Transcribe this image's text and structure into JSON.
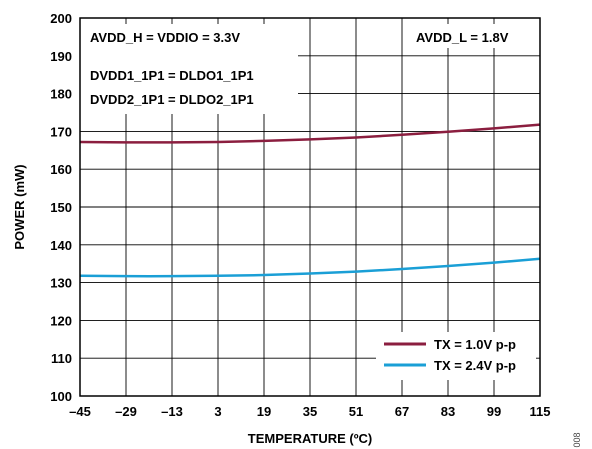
{
  "chart_data": {
    "type": "line",
    "xlabel": "TEMPERATURE (ºC)",
    "ylabel": "POWER (mW)",
    "xlim": [
      -45,
      115
    ],
    "ylim": [
      100,
      200
    ],
    "x_ticks": [
      "–45",
      "–29",
      "–13",
      "3",
      "19",
      "35",
      "51",
      "67",
      "83",
      "99",
      "115"
    ],
    "y_ticks": [
      "100",
      "110",
      "120",
      "130",
      "140",
      "150",
      "160",
      "170",
      "180",
      "190",
      "200"
    ],
    "grid": true,
    "legend_position": "bottom-right",
    "x": [
      -45,
      -29,
      -13,
      3,
      19,
      35,
      51,
      67,
      83,
      99,
      115
    ],
    "series": [
      {
        "name": "TX = 1.0V p-p",
        "color": "#8b1e3f",
        "values": [
          167.2,
          167.1,
          167.1,
          167.2,
          167.5,
          167.9,
          168.4,
          169.1,
          169.9,
          170.8,
          171.8
        ]
      },
      {
        "name": "TX = 2.4V p-p",
        "color": "#1a9fd6",
        "values": [
          131.8,
          131.7,
          131.7,
          131.8,
          132.0,
          132.4,
          132.9,
          133.6,
          134.4,
          135.3,
          136.3
        ]
      }
    ],
    "annotations": [
      "AVDD_H = VDDIO = 3.3V",
      "DVDD1_1P1 = DLDO1_1P1",
      "DVDD2_1P1 = DLDO2_1P1",
      "AVDD_L = 1.8V"
    ],
    "figure_id": "008"
  }
}
